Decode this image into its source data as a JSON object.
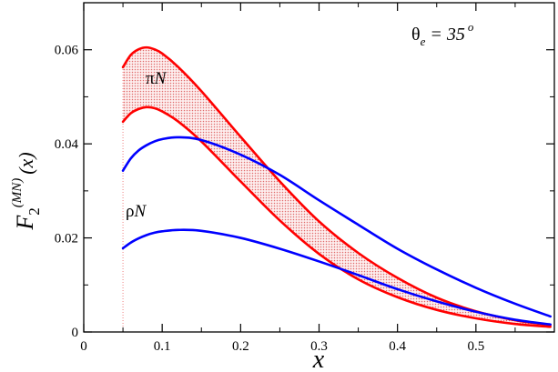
{
  "chart_data": {
    "type": "line",
    "title": "",
    "xlabel": "x",
    "ylabel": {
      "base": "F",
      "sub": "2",
      "sup": "(MN)",
      "arg": "(x)"
    },
    "xlim": [
      0,
      0.6
    ],
    "ylim": [
      0,
      0.07
    ],
    "x_ticks": [
      0,
      0.1,
      0.2,
      0.3,
      0.4,
      0.5
    ],
    "x_tick_labels": [
      "0",
      "0.1",
      "0.2",
      "0.3",
      "0.4",
      "0.5"
    ],
    "y_ticks": [
      0,
      0.02,
      0.04,
      0.06
    ],
    "y_tick_labels": [
      "0",
      "0.02",
      "0.04",
      "0.06"
    ],
    "x_cutoff": 0.05,
    "colors": {
      "pion": "#ff0000",
      "rho": "#0000ff",
      "band_fill": "#f4b8b8",
      "cutoff_line": "#f08080"
    },
    "annotations": {
      "angle": {
        "symbol": "θ",
        "sub": "e",
        "eq": " = 35",
        "sup": "o"
      },
      "pion_label": {
        "greek": "π",
        "letter": "N"
      },
      "rho_label": {
        "greek": "ρ",
        "letter": "N"
      }
    },
    "series": [
      {
        "name": "πN upper",
        "color": "#ff0000",
        "shaded_band": "πN",
        "x": [
          0.05,
          0.06,
          0.07,
          0.08,
          0.09,
          0.1,
          0.12,
          0.15,
          0.2,
          0.25,
          0.3,
          0.35,
          0.4,
          0.45,
          0.5,
          0.55,
          0.595
        ],
        "y": [
          0.0563,
          0.0589,
          0.0601,
          0.0605,
          0.0601,
          0.0592,
          0.0564,
          0.0512,
          0.0415,
          0.032,
          0.0235,
          0.0168,
          0.0115,
          0.0073,
          0.0044,
          0.0025,
          0.0015
        ]
      },
      {
        "name": "πN lower",
        "color": "#ff0000",
        "shaded_band": "πN",
        "x": [
          0.05,
          0.06,
          0.07,
          0.08,
          0.09,
          0.1,
          0.12,
          0.15,
          0.2,
          0.25,
          0.3,
          0.35,
          0.4,
          0.45,
          0.5,
          0.55,
          0.595
        ],
        "y": [
          0.0447,
          0.0465,
          0.0474,
          0.0478,
          0.0476,
          0.0469,
          0.0448,
          0.0405,
          0.032,
          0.0237,
          0.0166,
          0.0112,
          0.0074,
          0.0047,
          0.0029,
          0.0017,
          0.0011
        ]
      },
      {
        "name": "ρN upper",
        "color": "#0000ff",
        "x": [
          0.05,
          0.06,
          0.07,
          0.08,
          0.09,
          0.1,
          0.12,
          0.15,
          0.2,
          0.25,
          0.3,
          0.35,
          0.4,
          0.45,
          0.5,
          0.55,
          0.595
        ],
        "y": [
          0.0343,
          0.0369,
          0.0386,
          0.0397,
          0.0405,
          0.041,
          0.0414,
          0.0408,
          0.0377,
          0.0334,
          0.028,
          0.0228,
          0.0177,
          0.0133,
          0.0094,
          0.006,
          0.0033
        ]
      },
      {
        "name": "ρN lower",
        "color": "#0000ff",
        "x": [
          0.05,
          0.06,
          0.07,
          0.08,
          0.09,
          0.1,
          0.12,
          0.15,
          0.2,
          0.25,
          0.3,
          0.35,
          0.4,
          0.45,
          0.5,
          0.55,
          0.595
        ],
        "y": [
          0.0178,
          0.019,
          0.0199,
          0.0206,
          0.0211,
          0.0214,
          0.0217,
          0.0215,
          0.02,
          0.0177,
          0.015,
          0.0121,
          0.0091,
          0.0065,
          0.0043,
          0.0026,
          0.0016
        ]
      }
    ]
  }
}
